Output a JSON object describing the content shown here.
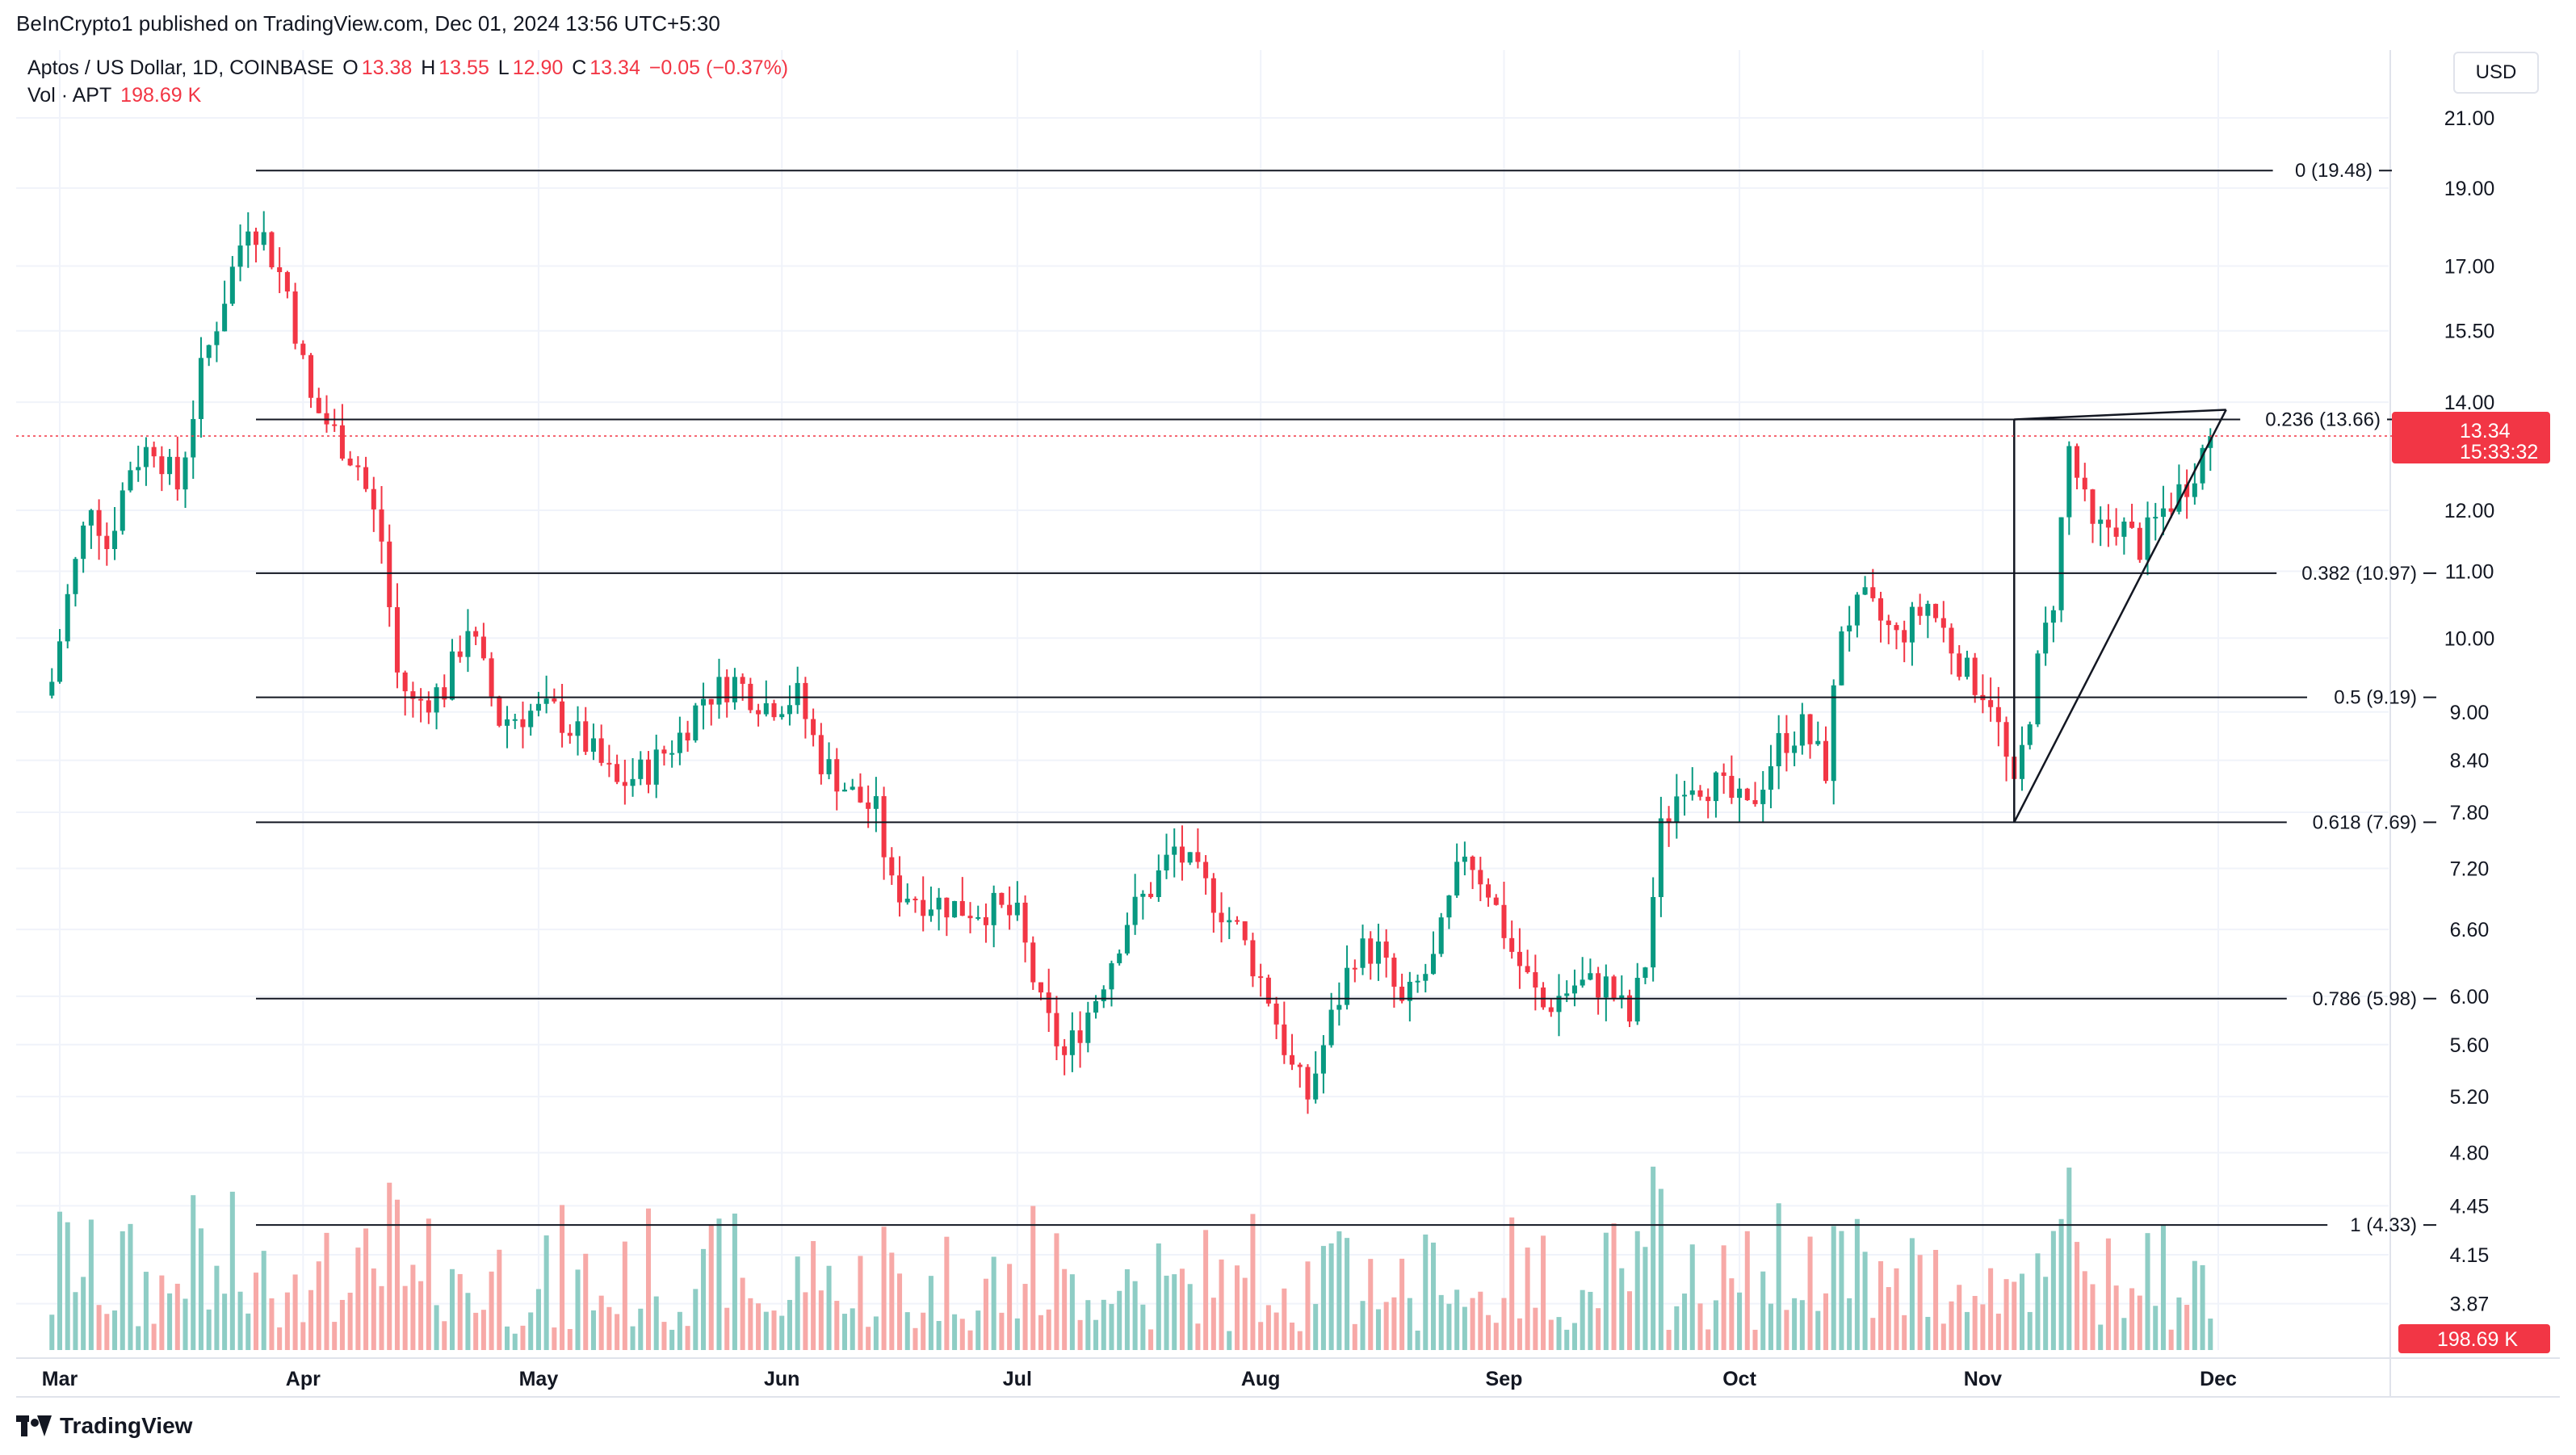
{
  "publisher": "BeInCrypto1 published on TradingView.com, Dec 01, 2024 13:56 UTC+5:30",
  "legend": {
    "symbol": "Aptos / US Dollar, 1D, COINBASE",
    "o_label": "O",
    "o_value": "13.38",
    "h_label": "H",
    "h_value": "13.55",
    "l_label": "L",
    "l_value": "12.90",
    "c_label": "C",
    "c_value": "13.34",
    "change": "−0.05 (−0.37%)",
    "vol_label": "Vol · APT",
    "vol_value": "198.69 K"
  },
  "currency_button": "USD",
  "brand": "TradingView",
  "colors": {
    "up": "#089981",
    "down": "#F23645",
    "up_vol": "#8ECDC5",
    "down_vol": "#F7A9A7"
  },
  "chart_data": {
    "type": "candlestick",
    "y_axis": {
      "ticks": [
        "21.00",
        "19.00",
        "17.00",
        "15.50",
        "14.00",
        "12.00",
        "11.00",
        "10.00",
        "9.00",
        "8.40",
        "7.80",
        "7.20",
        "6.60",
        "6.00",
        "5.60",
        "5.20",
        "4.80",
        "4.45",
        "4.15",
        "3.87"
      ],
      "scale": "log"
    },
    "x_axis": {
      "ticks": [
        "Mar",
        "Apr",
        "May",
        "Jun",
        "Jul",
        "Aug",
        "Sep",
        "Oct",
        "Nov",
        "Dec"
      ]
    },
    "current_price": {
      "value": "13.34",
      "countdown": "15:33:32"
    },
    "volume_label": "198.69 K",
    "fib_levels": [
      {
        "label": "0 (19.48)",
        "value": 19.48
      },
      {
        "label": "0.236 (13.66)",
        "value": 13.66
      },
      {
        "label": "0.382 (10.97)",
        "value": 10.97
      },
      {
        "label": "0.5 (9.19)",
        "value": 9.19
      },
      {
        "label": "0.618 (7.69)",
        "value": 7.69
      },
      {
        "label": "0.786 (5.98)",
        "value": 5.98
      },
      {
        "label": "1 (4.33)",
        "value": 4.33
      }
    ],
    "close_path": [
      [
        "2024-02-29",
        9.4
      ],
      [
        "2024-03-02",
        10.6
      ],
      [
        "2024-03-05",
        12.2
      ],
      [
        "2024-03-07",
        11.4
      ],
      [
        "2024-03-10",
        12.8
      ],
      [
        "2024-03-13",
        13.2
      ],
      [
        "2024-03-16",
        12.4
      ],
      [
        "2024-03-19",
        14.6
      ],
      [
        "2024-03-22",
        16.3
      ],
      [
        "2024-03-25",
        18.2
      ],
      [
        "2024-03-27",
        17.7
      ],
      [
        "2024-03-30",
        16.4
      ],
      [
        "2024-04-02",
        14.0
      ],
      [
        "2024-04-05",
        13.4
      ],
      [
        "2024-04-08",
        12.8
      ],
      [
        "2024-04-11",
        11.5
      ],
      [
        "2024-04-13",
        9.5
      ],
      [
        "2024-04-15",
        9.1
      ],
      [
        "2024-04-19",
        9.3
      ],
      [
        "2024-04-22",
        10.2
      ],
      [
        "2024-04-26",
        8.9
      ],
      [
        "2024-04-30",
        9.0
      ],
      [
        "2024-05-03",
        9.0
      ],
      [
        "2024-05-07",
        8.6
      ],
      [
        "2024-05-11",
        8.1
      ],
      [
        "2024-05-15",
        8.3
      ],
      [
        "2024-05-19",
        8.7
      ],
      [
        "2024-05-22",
        9.2
      ],
      [
        "2024-05-26",
        9.4
      ],
      [
        "2024-05-30",
        9.1
      ],
      [
        "2024-06-03",
        9.2
      ],
      [
        "2024-06-06",
        8.4
      ],
      [
        "2024-06-10",
        8.0
      ],
      [
        "2024-06-13",
        7.8
      ],
      [
        "2024-06-15",
        7.0
      ],
      [
        "2024-06-19",
        6.9
      ],
      [
        "2024-06-24",
        6.8
      ],
      [
        "2024-06-28",
        6.8
      ],
      [
        "2024-07-01",
        6.7
      ],
      [
        "2024-07-04",
        5.9
      ],
      [
        "2024-07-07",
        5.5
      ],
      [
        "2024-07-11",
        6.0
      ],
      [
        "2024-07-15",
        6.7
      ],
      [
        "2024-07-18",
        7.0
      ],
      [
        "2024-07-21",
        7.4
      ],
      [
        "2024-07-25",
        7.0
      ],
      [
        "2024-07-29",
        6.6
      ],
      [
        "2024-08-02",
        6.0
      ],
      [
        "2024-08-05",
        5.4
      ],
      [
        "2024-08-07",
        5.2
      ],
      [
        "2024-08-10",
        5.8
      ],
      [
        "2024-08-13",
        6.4
      ],
      [
        "2024-08-16",
        6.4
      ],
      [
        "2024-08-19",
        5.9
      ],
      [
        "2024-08-23",
        6.3
      ],
      [
        "2024-08-27",
        7.4
      ],
      [
        "2024-08-30",
        7.0
      ],
      [
        "2024-09-02",
        6.4
      ],
      [
        "2024-09-06",
        5.9
      ],
      [
        "2024-09-10",
        6.1
      ],
      [
        "2024-09-14",
        6.1
      ],
      [
        "2024-09-17",
        5.8
      ],
      [
        "2024-09-19",
        6.3
      ],
      [
        "2024-09-21",
        7.6
      ],
      [
        "2024-09-24",
        8.2
      ],
      [
        "2024-09-28",
        8.1
      ],
      [
        "2024-10-02",
        7.8
      ],
      [
        "2024-10-06",
        8.6
      ],
      [
        "2024-10-09",
        8.8
      ],
      [
        "2024-10-12",
        8.3
      ],
      [
        "2024-10-14",
        10.2
      ],
      [
        "2024-10-17",
        10.5
      ],
      [
        "2024-10-21",
        10.0
      ],
      [
        "2024-10-25",
        10.5
      ],
      [
        "2024-10-27",
        10.1
      ],
      [
        "2024-10-30",
        9.5
      ],
      [
        "2024-11-02",
        9.2
      ],
      [
        "2024-11-05",
        8.0
      ],
      [
        "2024-11-08",
        9.6
      ],
      [
        "2024-11-10",
        10.6
      ],
      [
        "2024-11-12",
        13.1
      ],
      [
        "2024-11-15",
        11.6
      ],
      [
        "2024-11-18",
        11.8
      ],
      [
        "2024-11-21",
        11.4
      ],
      [
        "2024-11-24",
        12.0
      ],
      [
        "2024-11-27",
        12.5
      ],
      [
        "2024-11-30",
        13.34
      ]
    ]
  }
}
